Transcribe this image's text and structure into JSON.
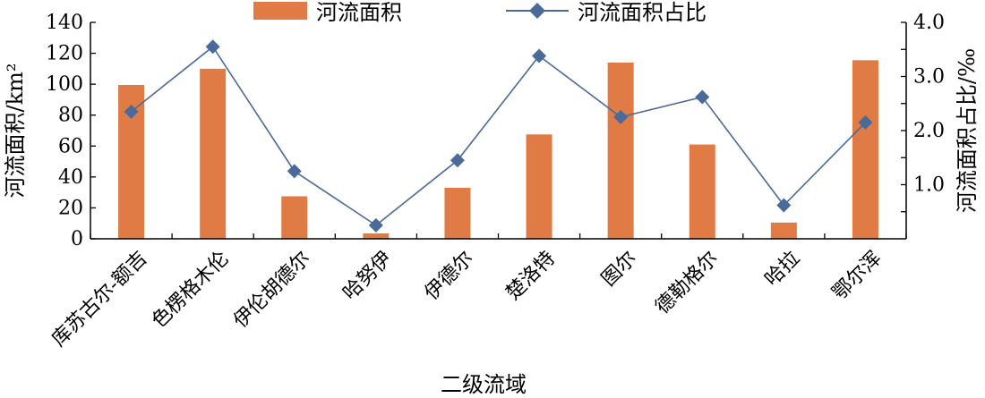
{
  "chart_data": {
    "type": "bar+line",
    "categories": [
      "库苏古尔-额吉",
      "色楞格木伦",
      "伊伦胡德尔",
      "哈努伊",
      "伊德尔",
      "楚洛特",
      "图尔",
      "德勒格尔",
      "哈拉",
      "鄂尔浑"
    ],
    "series": [
      {
        "name": "河流面积",
        "type": "bar",
        "axis": "left",
        "color": "#E07B45",
        "values": [
          99.5,
          110,
          27.5,
          3.5,
          33,
          67.5,
          114,
          61,
          10.5,
          115.5
        ]
      },
      {
        "name": "河流面积占比",
        "type": "line",
        "axis": "right",
        "color": "#4A6A9A",
        "marker": "diamond",
        "values": [
          2.35,
          3.55,
          1.25,
          0.25,
          1.45,
          3.38,
          2.25,
          2.62,
          0.62,
          2.15
        ]
      }
    ],
    "xlabel": "二级流域",
    "ylabel_left": "河流面积/km²",
    "ylabel_right": "河流面积占比/‰",
    "ylim_left": [
      0,
      140
    ],
    "yticks_left": [
      "0",
      "20",
      "40",
      "60",
      "80",
      "100",
      "120",
      "140"
    ],
    "ylim_right": [
      0,
      4.0
    ],
    "yticks_right": [
      "1.0",
      "2.0",
      "3.0",
      "4.0"
    ],
    "legend_position": "top",
    "grid": false
  }
}
